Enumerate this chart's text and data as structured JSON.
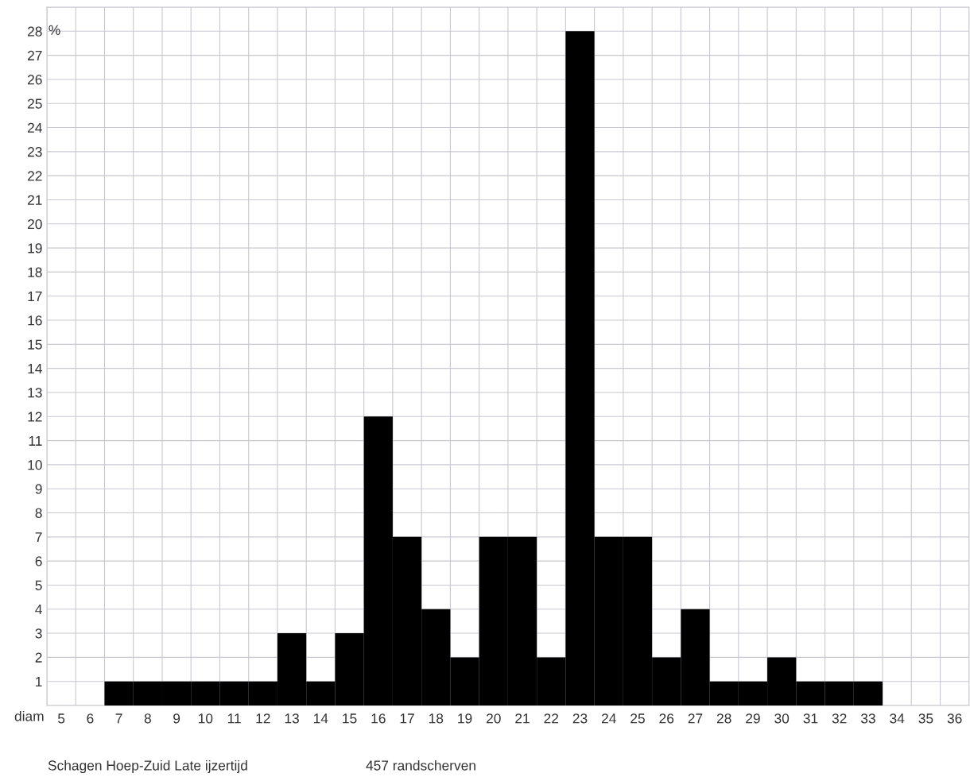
{
  "chart_data": {
    "type": "bar",
    "xlabel": "diam",
    "ylabel": "%",
    "categories": [
      "5",
      "6",
      "7",
      "8",
      "9",
      "10",
      "11",
      "12",
      "13",
      "14",
      "15",
      "16",
      "17",
      "18",
      "19",
      "20",
      "21",
      "22",
      "23",
      "24",
      "25",
      "26",
      "27",
      "28",
      "29",
      "30",
      "31",
      "32",
      "33",
      "34",
      "35",
      "36"
    ],
    "values": [
      0,
      0,
      1,
      1,
      1,
      1,
      1,
      1,
      3,
      1,
      3,
      12,
      7,
      4,
      2,
      7,
      7,
      2,
      28,
      7,
      7,
      2,
      4,
      1,
      1,
      2,
      1,
      1,
      1,
      0,
      0,
      0
    ],
    "color": "#000000",
    "ylim": [
      0,
      29
    ],
    "yticks": [
      1,
      2,
      3,
      4,
      5,
      6,
      7,
      8,
      9,
      10,
      11,
      12,
      13,
      14,
      15,
      16,
      17,
      18,
      19,
      20,
      21,
      22,
      23,
      24,
      25,
      26,
      27,
      28
    ],
    "grid": true,
    "annotations": [
      "Schagen Hoep-Zuid Late ijzertijd",
      "457 randscherven"
    ]
  }
}
